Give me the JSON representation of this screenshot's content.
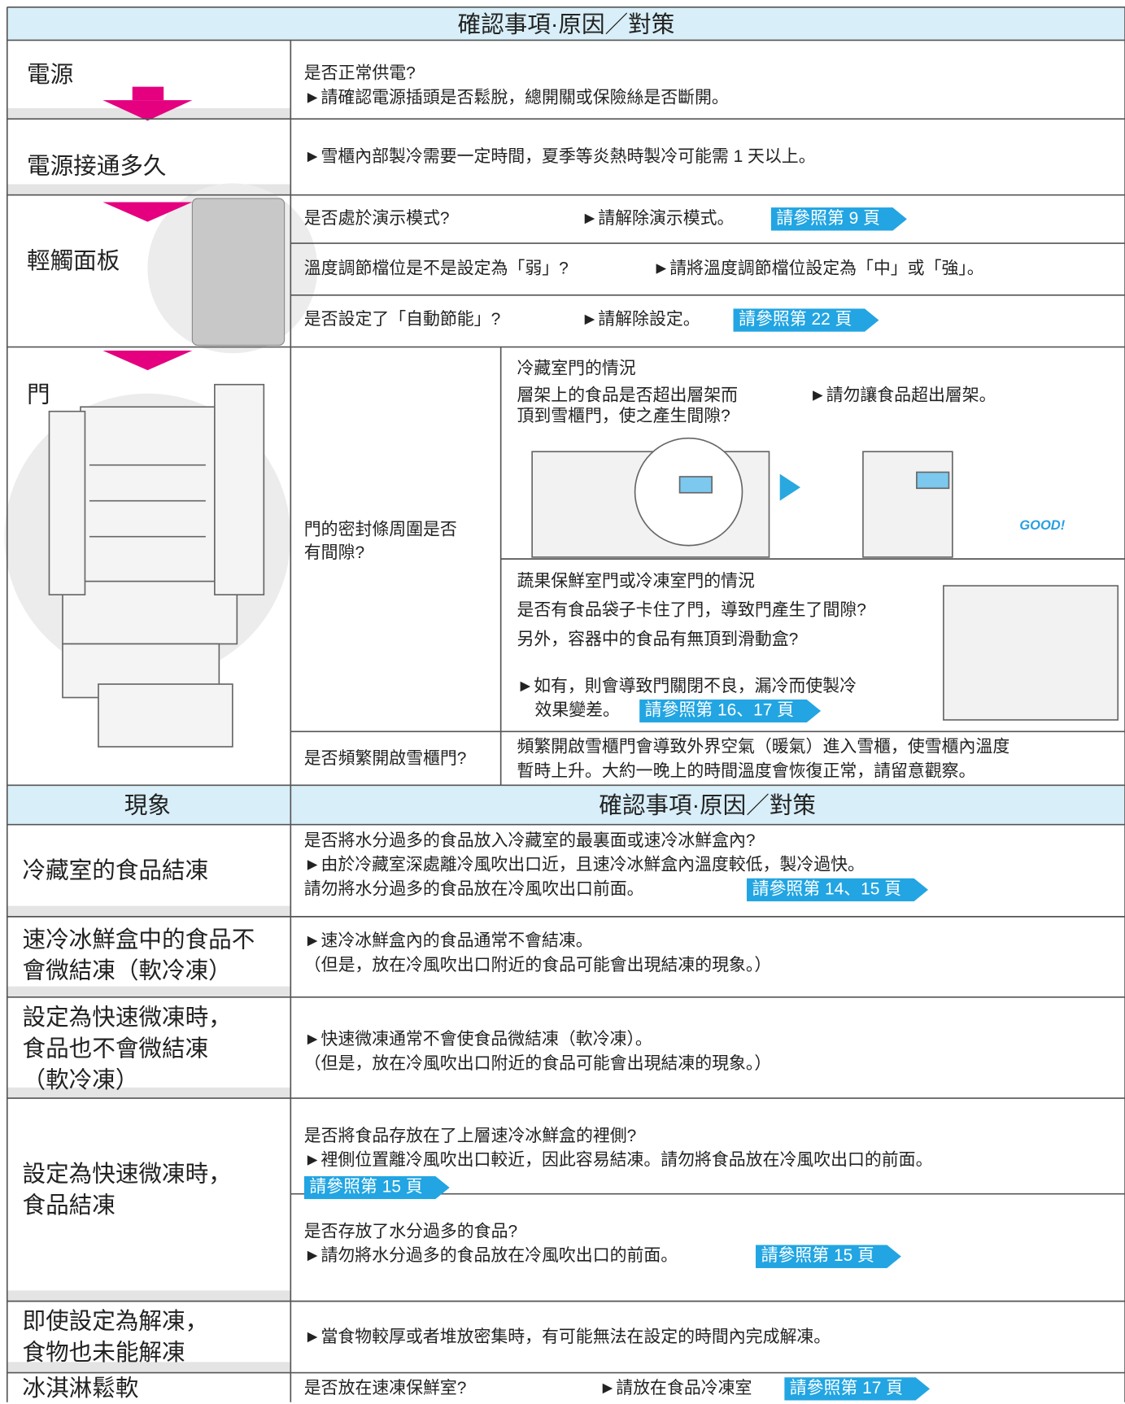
{
  "header": {
    "title": "確認事項·原因／對策"
  },
  "rows": [
    {
      "label": "電源",
      "check": "是否正常供電?",
      "action": "►請確認電源插頭是否鬆脫，總開關或保險絲是否斷開。"
    },
    {
      "label": "電源接通多久",
      "action": "►雪櫃內部製冷需要一定時間，夏季等炎熱時製冷可能需 1 天以上。"
    },
    {
      "label": "輕觸面板",
      "items": [
        {
          "check": "是否處於演示模式?",
          "action": "►請解除演示模式。",
          "ref": "請參照第 9 頁"
        },
        {
          "check": "溫度調節檔位是不是設定為「弱」?",
          "action": "►請將溫度調節檔位設定為「中」或「強」。"
        },
        {
          "check": "是否設定了「自動節能」?",
          "action": "►請解除設定。",
          "ref": "請參照第 22 頁"
        }
      ]
    },
    {
      "label": "門",
      "items": [
        {
          "check": [
            "門的密封條周圍是否",
            "有間隙?"
          ],
          "cases": [
            {
              "title": "冷藏室門的情況",
              "check": [
                "層架上的食品是否超出層架而",
                "頂到雪櫃門，使之產生間隙?"
              ],
              "action": "►請勿讓食品超出層架。",
              "illustration_text": "GOOD!"
            },
            {
              "title": "蔬果保鮮室門或冷凍室門的情況",
              "check": [
                "是否有食品袋子卡住了門，導致門產生了間隙?",
                "另外，容器中的食品有無頂到滑動盒?"
              ],
              "action": [
                "►如有，則會導致門關閉不良，漏冷而使製冷",
                "效果變差。"
              ],
              "ref": "請參照第 16、17 頁"
            }
          ]
        },
        {
          "check": "是否頻繁開啟雪櫃門?",
          "action": [
            "頻繁開啟雪櫃門會導致外界空氣（暖氣）進入雪櫃，使雪櫃內溫度",
            "暫時上升。大約一晚上的時間溫度會恢復正常，請留意觀察。"
          ]
        }
      ]
    }
  ],
  "table2": {
    "header": {
      "symptom": "現象",
      "title": "確認事項·原因／對策"
    },
    "rows": [
      {
        "label": [
          "冷藏室的食品結凍"
        ],
        "items": [
          {
            "lines": [
              "是否將水分過多的食品放入冷藏室的最裏面或速冷冰鮮盒內?",
              "►由於冷藏室深處離冷風吹出口近，且速冷冰鮮盒內溫度較低，製冷過快。",
              "  請勿將水分過多的食品放在冷風吹出口前面。"
            ],
            "ref": "請參照第 14、15 頁"
          }
        ]
      },
      {
        "label": [
          "速冷冰鮮盒中的食品不",
          "會微結凍（軟冷凍）"
        ],
        "items": [
          {
            "lines": [
              "►速冷冰鮮盒內的食品通常不會結凍。",
              "（但是，放在冷風吹出口附近的食品可能會出現結凍的現象。）"
            ]
          }
        ]
      },
      {
        "label": [
          "設定為快速微凍時，",
          "食品也不會微結凍",
          "（軟冷凍）"
        ],
        "items": [
          {
            "lines": [
              "►快速微凍通常不會使食品微結凍（軟冷凍）。",
              "  （但是，放在冷風吹出口附近的食品可能會出現結凍的現象。）"
            ]
          }
        ]
      },
      {
        "label": [
          "設定為快速微凍時，",
          "食品結凍"
        ],
        "items": [
          {
            "lines": [
              "是否將食品存放在了上層速冷冰鮮盒的裡側?",
              "►裡側位置離冷風吹出口較近，因此容易結凍。請勿將食品放在冷風吹出口的前面。"
            ],
            "ref": "請參照第 15 頁"
          },
          {
            "lines": [
              "是否存放了水分過多的食品?",
              "►請勿將水分過多的食品放在冷風吹出口的前面。"
            ],
            "ref": "請參照第 15 頁"
          }
        ]
      },
      {
        "label": [
          "即使設定為解凍，",
          "食物也未能解凍"
        ],
        "items": [
          {
            "lines": [
              "►當食物較厚或者堆放密集時，有可能無法在設定的時間內完成解凍。"
            ]
          }
        ]
      },
      {
        "label": [
          "冰淇淋鬆軟"
        ],
        "items": [
          {
            "check": "是否放在速凍保鮮室?",
            "action": "►請放在食品冷凍室",
            "ref": "請參照第 17 頁"
          }
        ]
      }
    ]
  }
}
